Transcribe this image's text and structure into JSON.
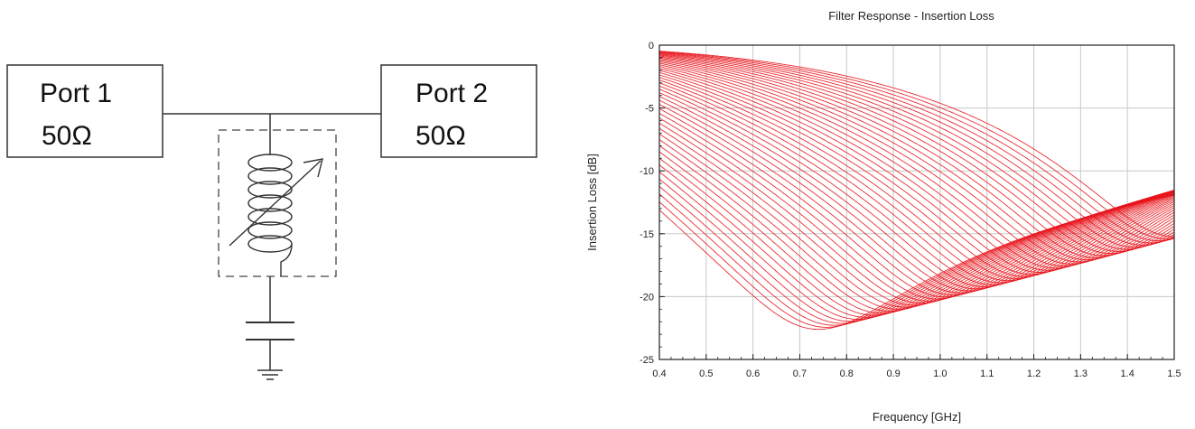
{
  "schematic": {
    "port1": {
      "name": "Port 1",
      "impedance": "50Ω"
    },
    "port2": {
      "name": "Port 2",
      "impedance": "50Ω"
    }
  },
  "chart_data": {
    "type": "line",
    "title": "Filter Response - Insertion Loss",
    "xlabel": "Frequency [GHz]",
    "ylabel": "Insertion Loss [dB]",
    "xlim": [
      0.4,
      1.5
    ],
    "ylim": [
      -25,
      0
    ],
    "xticks": [
      "0.4",
      "0.5",
      "0.6",
      "0.7",
      "0.8",
      "0.9",
      "1.0",
      "1.1",
      "1.2",
      "1.3",
      "1.4",
      "1.5"
    ],
    "yticks": [
      "0",
      "-5",
      "-10",
      "-15",
      "-20",
      "-25"
    ],
    "grid": true,
    "legend": "none",
    "line_color": "#e8141c",
    "sweep": {
      "resonance_start_ghz": 0.74,
      "resonance_end_ghz": 1.5,
      "resonance_depth_start_db": -23.2,
      "resonance_depth_end_db": -16.5,
      "curve_count": 46
    }
  }
}
